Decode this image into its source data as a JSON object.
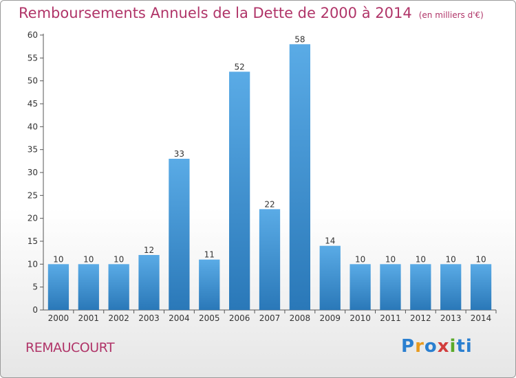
{
  "header": {
    "title": "Remboursements Annuels de la Dette de 2000 à 2014",
    "subtitle": "(en milliers d'€)"
  },
  "footer": {
    "commune": "REMAUCOURT",
    "logo_letters": [
      "P",
      "r",
      "o",
      "x",
      "i",
      "ti"
    ]
  },
  "colors": {
    "title": "#b03468",
    "bar_top": "#5aabe6",
    "bar_bottom": "#2a78b8",
    "axis": "#555555"
  },
  "chart_data": {
    "type": "bar",
    "title": "Remboursements Annuels de la Dette de 2000 à 2014",
    "categories": [
      "2000",
      "2001",
      "2002",
      "2003",
      "2004",
      "2005",
      "2006",
      "2007",
      "2008",
      "2009",
      "2010",
      "2011",
      "2012",
      "2013",
      "2014"
    ],
    "values": [
      10,
      10,
      10,
      12,
      33,
      11,
      52,
      22,
      58,
      14,
      10,
      10,
      10,
      10,
      10
    ],
    "ylim": [
      0,
      60
    ],
    "yticks": [
      0,
      5,
      10,
      15,
      20,
      25,
      30,
      35,
      40,
      45,
      50,
      55,
      60
    ],
    "grid": false,
    "legend": "none",
    "data_labels": true
  }
}
